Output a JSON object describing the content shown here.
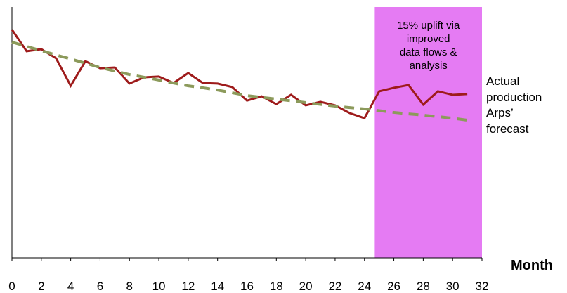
{
  "chart_data": {
    "type": "line",
    "x_label": "Month",
    "x": [
      0,
      1,
      2,
      3,
      4,
      5,
      6,
      7,
      8,
      9,
      10,
      11,
      12,
      13,
      14,
      15,
      16,
      17,
      18,
      19,
      20,
      21,
      22,
      23,
      24,
      25,
      26,
      27,
      28,
      29,
      30,
      31
    ],
    "series": [
      {
        "name": "Actual production",
        "color": "#9e1b1b",
        "dashed": false,
        "values": [
          91.0,
          82.4,
          83.2,
          79.6,
          68.6,
          78.4,
          75.6,
          75.9,
          69.5,
          72.0,
          72.3,
          69.7,
          73.7,
          69.7,
          69.5,
          68.1,
          62.7,
          64.4,
          61.3,
          65.0,
          60.8,
          62.2,
          60.8,
          57.7,
          55.7,
          66.4,
          67.8,
          68.9,
          61.1,
          66.4,
          65.0,
          65.3
        ]
      },
      {
        "name": "Arps’ forecast",
        "color": "#8c9a5b",
        "dashed": true,
        "values": [
          86.0,
          84.3,
          82.6,
          80.9,
          79.3,
          77.6,
          75.9,
          74.5,
          73.1,
          72.0,
          70.9,
          69.7,
          68.6,
          67.8,
          66.9,
          65.8,
          64.7,
          64.0,
          63.3,
          62.6,
          61.9,
          61.2,
          60.5,
          59.9,
          59.4,
          58.7,
          58.0,
          57.4,
          56.9,
          56.3,
          55.7,
          54.9
        ]
      }
    ],
    "highlight": {
      "x": [
        24.7,
        32
      ],
      "color": "#e57bf3",
      "lines": [
        "15% uplift via",
        "improved",
        "data flows &",
        "analysis"
      ]
    },
    "xlim": [
      0,
      32
    ],
    "xticks": [
      0,
      2,
      4,
      6,
      8,
      10,
      12,
      14,
      16,
      18,
      20,
      22,
      24,
      26,
      28,
      30,
      32
    ],
    "ylim": [
      0,
      100
    ]
  }
}
